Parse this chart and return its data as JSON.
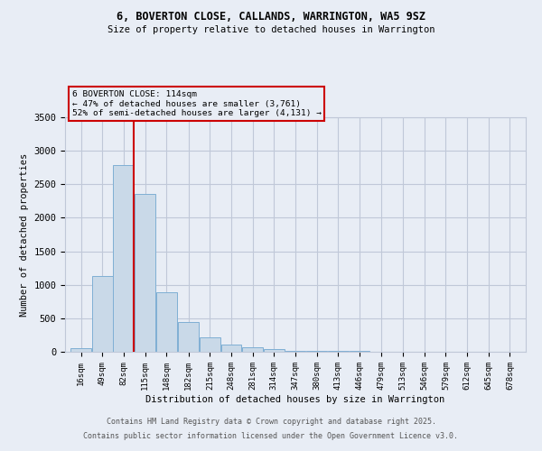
{
  "title1": "6, BOVERTON CLOSE, CALLANDS, WARRINGTON, WA5 9SZ",
  "title2": "Size of property relative to detached houses in Warrington",
  "xlabel": "Distribution of detached houses by size in Warrington",
  "ylabel": "Number of detached properties",
  "bar_left_edges": [
    16,
    49,
    82,
    115,
    148,
    182,
    215,
    248,
    281,
    314,
    347,
    380,
    413,
    446,
    479,
    513,
    546,
    579,
    612,
    645,
    678
  ],
  "bar_widths": [
    33,
    33,
    33,
    33,
    33,
    33,
    33,
    33,
    33,
    33,
    33,
    33,
    33,
    33,
    33,
    33,
    33,
    33,
    33,
    33,
    33
  ],
  "bar_heights": [
    50,
    1130,
    2780,
    2350,
    890,
    450,
    210,
    110,
    70,
    40,
    20,
    20,
    10,
    10,
    5,
    5,
    3,
    2,
    2,
    2,
    2
  ],
  "bar_color": "#c9d9e8",
  "bar_edgecolor": "#7fafd4",
  "grid_color": "#c0c8d8",
  "bg_color": "#e8edf5",
  "vline_x": 114,
  "vline_color": "#cc0000",
  "ylim": [
    0,
    3500
  ],
  "yticks": [
    0,
    500,
    1000,
    1500,
    2000,
    2500,
    3000,
    3500
  ],
  "annotation_text": "6 BOVERTON CLOSE: 114sqm\n← 47% of detached houses are smaller (3,761)\n52% of semi-detached houses are larger (4,131) →",
  "footer1": "Contains HM Land Registry data © Crown copyright and database right 2025.",
  "footer2": "Contains public sector information licensed under the Open Government Licence v3.0.",
  "tick_labels": [
    "16sqm",
    "49sqm",
    "82sqm",
    "115sqm",
    "148sqm",
    "182sqm",
    "215sqm",
    "248sqm",
    "281sqm",
    "314sqm",
    "347sqm",
    "380sqm",
    "413sqm",
    "446sqm",
    "479sqm",
    "513sqm",
    "546sqm",
    "579sqm",
    "612sqm",
    "645sqm",
    "678sqm"
  ]
}
